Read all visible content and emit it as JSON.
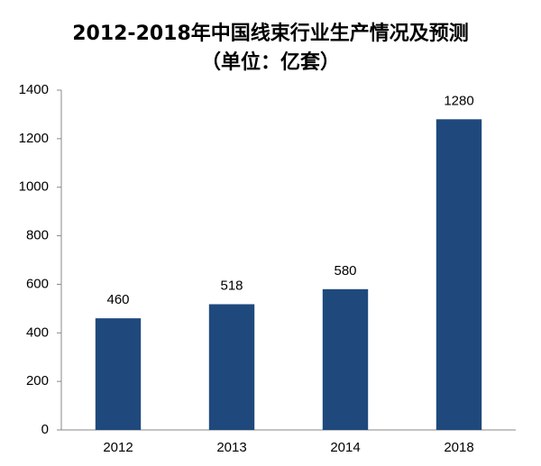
{
  "chart_data": {
    "type": "bar",
    "title": "2012-2018年中国线束行业生产情况及预测",
    "subtitle": "（单位：亿套）",
    "categories": [
      "2012",
      "2013",
      "2014",
      "2018"
    ],
    "values": [
      460,
      518,
      580,
      1280
    ],
    "color": "#1f497d",
    "ylim": [
      0,
      1400
    ],
    "yticks": [
      0,
      200,
      400,
      600,
      800,
      1000,
      1200,
      1400
    ],
    "grid": false
  }
}
